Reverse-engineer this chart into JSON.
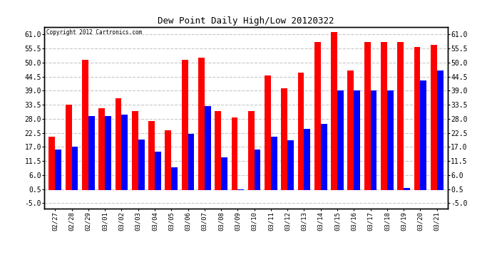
{
  "title": "Dew Point Daily High/Low 20120322",
  "copyright": "Copyright 2012 Cartronics.com",
  "dates": [
    "02/27",
    "02/28",
    "02/29",
    "03/01",
    "03/02",
    "03/03",
    "03/04",
    "03/05",
    "03/06",
    "03/07",
    "03/08",
    "03/09",
    "03/10",
    "03/11",
    "03/12",
    "03/13",
    "03/14",
    "03/15",
    "03/16",
    "03/17",
    "03/18",
    "03/19",
    "03/20",
    "03/21"
  ],
  "high": [
    21.0,
    33.5,
    51.0,
    32.0,
    36.0,
    31.0,
    27.0,
    23.5,
    51.0,
    52.0,
    31.0,
    28.5,
    31.0,
    45.0,
    40.0,
    46.0,
    58.0,
    62.0,
    47.0,
    58.0,
    58.0,
    58.0,
    56.0,
    57.0
  ],
  "low": [
    16.0,
    17.0,
    29.0,
    29.0,
    29.5,
    20.0,
    15.0,
    9.0,
    22.0,
    33.0,
    13.0,
    0.5,
    16.0,
    21.0,
    19.5,
    24.0,
    26.0,
    39.0,
    39.0,
    39.0,
    39.0,
    1.0,
    43.0,
    47.0
  ],
  "high_color": "#ff0000",
  "low_color": "#0000ff",
  "bg_color": "#ffffff",
  "grid_color": "#c8c8c8",
  "yticks": [
    -5.0,
    0.5,
    6.0,
    11.5,
    17.0,
    22.5,
    28.0,
    33.5,
    39.0,
    44.5,
    50.0,
    55.5,
    61.0
  ],
  "ylim": [
    -7.0,
    64.0
  ],
  "bar_width": 0.38,
  "figsize": [
    6.9,
    3.75
  ],
  "dpi": 100
}
